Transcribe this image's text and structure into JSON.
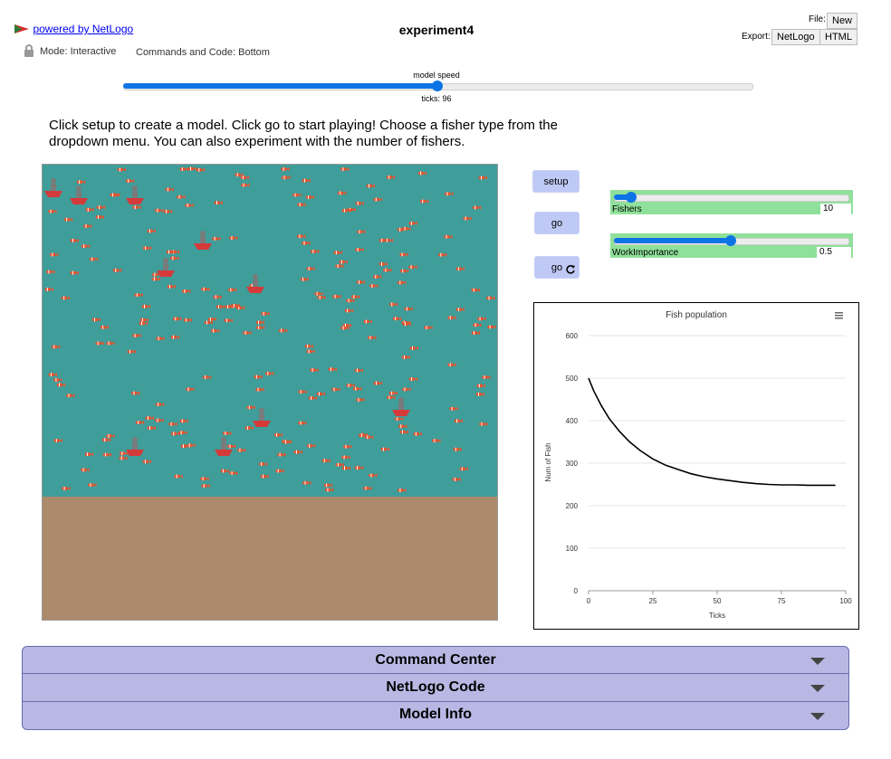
{
  "header": {
    "powered_by": "powered by NetLogo",
    "model_title": "experiment4",
    "mode_label": "Mode: Interactive",
    "commands_label": "Commands and Code: Bottom",
    "file_label": "File:",
    "new_label": "New",
    "export_label": "Export:",
    "export_netlogo": "NetLogo",
    "export_html": "HTML"
  },
  "speed": {
    "label": "model speed",
    "ticks_label": "ticks: 96",
    "level": 0.5
  },
  "description": {
    "line1": "Click setup to create a model. Click go to start playing! Choose a fisher type from the",
    "line2": "dropdown menu. You can also experiment with the number of fishers."
  },
  "buttons": {
    "setup": "setup",
    "go": "go",
    "go_forever": "go"
  },
  "sliders": {
    "fishers": {
      "label": "Fishers",
      "value": "10",
      "fraction": 0.05
    },
    "work": {
      "label": "WorkImportance",
      "value": "0.5",
      "fraction": 0.5
    }
  },
  "world": {
    "water_color": "#3f9d9a",
    "ground_color": "#ac8a6b",
    "fisher_count": 10,
    "fish_color": "#e8522b"
  },
  "colors": {
    "accent": "#0d74e6",
    "button_bg": "#bfc9f6",
    "slider_bg": "#8fe09a",
    "accordion_bg": "#b9b8e4"
  },
  "chart_data": {
    "type": "line",
    "title": "Fish population",
    "xlabel": "Ticks",
    "ylabel": "Num of Fish",
    "xlim": [
      0,
      100
    ],
    "ylim": [
      0,
      600
    ],
    "x_ticks": [
      "0",
      "25",
      "50",
      "75",
      "100"
    ],
    "y_ticks": [
      "0",
      "100",
      "200",
      "300",
      "400",
      "500",
      "600"
    ],
    "grid": true,
    "series": [
      {
        "color": "#000000",
        "x": [
          0,
          2,
          5,
          8,
          12,
          16,
          20,
          25,
          30,
          35,
          40,
          45,
          50,
          55,
          60,
          65,
          70,
          75,
          80,
          85,
          90,
          96
        ],
        "y": [
          500,
          470,
          435,
          405,
          375,
          350,
          330,
          310,
          295,
          285,
          275,
          268,
          263,
          259,
          255,
          252,
          250,
          249,
          249,
          248,
          248,
          248
        ]
      }
    ]
  },
  "accordion": {
    "command_center": "Command Center",
    "netlogo_code": "NetLogo Code",
    "model_info": "Model Info"
  }
}
